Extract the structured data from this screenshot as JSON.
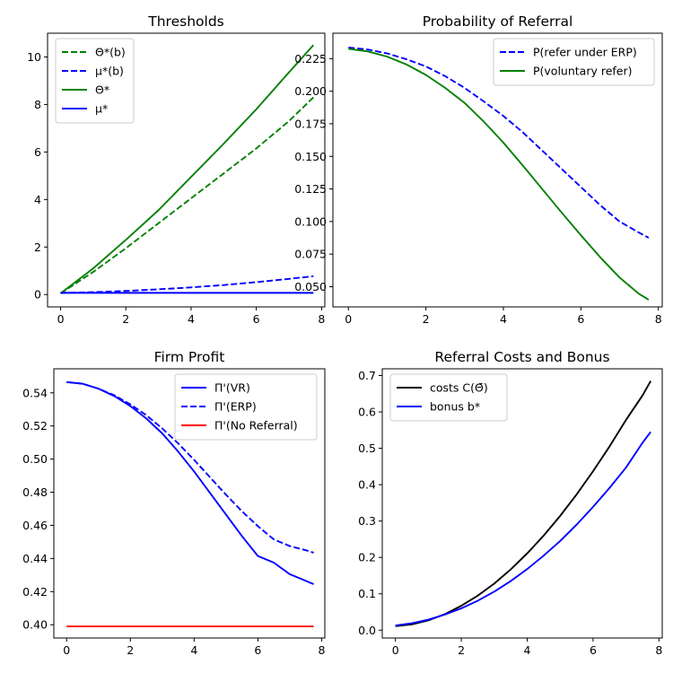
{
  "chart_data": [
    {
      "type": "line",
      "title": "Thresholds",
      "xlim": [
        -0.4,
        8.1
      ],
      "ylim": [
        -0.52,
        11.0
      ],
      "xticks": [
        0,
        2,
        4,
        6,
        8
      ],
      "yticks": [
        0,
        2,
        4,
        6,
        8,
        10
      ],
      "legend": "top-left",
      "series": [
        {
          "name": "Θ*(b)",
          "color": "#008000",
          "dash": "dashed",
          "x": [
            0,
            1,
            2,
            3,
            4,
            5,
            6,
            7,
            7.75
          ],
          "y": [
            0.05,
            0.95,
            1.95,
            3.0,
            4.05,
            5.1,
            6.15,
            7.3,
            8.3
          ]
        },
        {
          "name": "μ*(b)",
          "color": "#0000ff",
          "dash": "dashed",
          "x": [
            0,
            1,
            2,
            3,
            4,
            5,
            6,
            7,
            7.75
          ],
          "y": [
            0.07,
            0.1,
            0.15,
            0.22,
            0.3,
            0.4,
            0.52,
            0.66,
            0.77
          ]
        },
        {
          "name": "Θ*",
          "color": "#008000",
          "dash": "solid",
          "x": [
            0,
            1,
            2,
            3,
            4,
            5,
            6,
            7,
            7.75
          ],
          "y": [
            0.05,
            1.1,
            2.3,
            3.55,
            4.95,
            6.35,
            7.8,
            9.35,
            10.5
          ]
        },
        {
          "name": "μ*",
          "color": "#0000ff",
          "dash": "solid",
          "x": [
            0,
            7.75
          ],
          "y": [
            0.07,
            0.07
          ]
        }
      ]
    },
    {
      "type": "line",
      "title": "Probability of Referral",
      "xlim": [
        -0.4,
        8.1
      ],
      "ylim": [
        0.0345,
        0.2445
      ],
      "xticks": [
        0,
        2,
        4,
        6,
        8
      ],
      "yticks": [
        0.05,
        0.075,
        0.1,
        0.125,
        0.15,
        0.175,
        0.2,
        0.225
      ],
      "ytick_labels": [
        "0.050",
        "0.075",
        "0.100",
        "0.125",
        "0.150",
        "0.175",
        "0.200",
        "0.225"
      ],
      "legend": "top-right",
      "series": [
        {
          "name": "P(refer under ERP)",
          "color": "#0000ff",
          "dash": "dashed",
          "x": [
            0,
            0.5,
            1,
            1.5,
            2,
            2.5,
            3,
            3.5,
            4,
            4.5,
            5,
            5.5,
            6,
            6.5,
            7,
            7.5,
            7.75
          ],
          "y": [
            0.2335,
            0.232,
            0.229,
            0.2245,
            0.219,
            0.2115,
            0.2025,
            0.192,
            0.181,
            0.1685,
            0.1545,
            0.1405,
            0.1265,
            0.1125,
            0.1,
            0.0915,
            0.0875
          ]
        },
        {
          "name": "P(voluntary refer)",
          "color": "#008000",
          "dash": "solid",
          "x": [
            0,
            0.5,
            1,
            1.5,
            2,
            2.5,
            3,
            3.5,
            4,
            4.5,
            5,
            5.5,
            6,
            6.5,
            7,
            7.5,
            7.75
          ],
          "y": [
            0.2325,
            0.2305,
            0.2265,
            0.2205,
            0.2125,
            0.2025,
            0.191,
            0.1765,
            0.1605,
            0.143,
            0.125,
            0.107,
            0.0895,
            0.0725,
            0.057,
            0.0445,
            0.04
          ]
        }
      ]
    },
    {
      "type": "line",
      "title": "Firm Profit",
      "xlim": [
        -0.4,
        8.1
      ],
      "ylim": [
        0.392,
        0.5545
      ],
      "xticks": [
        0,
        2,
        4,
        6,
        8
      ],
      "yticks": [
        0.4,
        0.42,
        0.44,
        0.46,
        0.48,
        0.5,
        0.52,
        0.54
      ],
      "ytick_labels": [
        "0.40",
        "0.42",
        "0.44",
        "0.46",
        "0.48",
        "0.50",
        "0.52",
        "0.54"
      ],
      "legend": "top-right",
      "series": [
        {
          "name": "Π'(VR)",
          "color": "#0000ff",
          "dash": "solid",
          "x": [
            0,
            0.5,
            1,
            1.5,
            2,
            2.5,
            3,
            3.5,
            4,
            4.5,
            5,
            5.5,
            6,
            6.5,
            7,
            7.5,
            7.75
          ],
          "y": [
            0.5465,
            0.5455,
            0.5425,
            0.538,
            0.532,
            0.5245,
            0.5155,
            0.5045,
            0.4925,
            0.4795,
            0.4665,
            0.4535,
            0.4415,
            0.4375,
            0.4305,
            0.4265,
            0.4245
          ]
        },
        {
          "name": "Π'(ERP)",
          "color": "#0000ff",
          "dash": "dashed",
          "x": [
            0,
            0.5,
            1,
            1.5,
            2,
            2.5,
            3,
            3.5,
            4,
            4.5,
            5,
            5.5,
            6,
            6.5,
            7,
            7.5,
            7.75
          ],
          "y": [
            0.5465,
            0.5455,
            0.5425,
            0.5385,
            0.533,
            0.5265,
            0.5185,
            0.5095,
            0.4995,
            0.489,
            0.4785,
            0.4685,
            0.4595,
            0.4515,
            0.4475,
            0.445,
            0.4435
          ]
        },
        {
          "name": "Π'(No Referral)",
          "color": "#ff0000",
          "dash": "solid",
          "x": [
            0,
            7.75
          ],
          "y": [
            0.399,
            0.399
          ]
        }
      ]
    },
    {
      "type": "line",
      "title": "Referral Costs and Bonus",
      "xlim": [
        -0.4,
        8.1
      ],
      "ylim": [
        -0.0215,
        0.7185
      ],
      "xticks": [
        0,
        2,
        4,
        6,
        8
      ],
      "yticks": [
        0.0,
        0.1,
        0.2,
        0.3,
        0.4,
        0.5,
        0.6,
        0.7
      ],
      "ytick_labels": [
        "0.0",
        "0.1",
        "0.2",
        "0.3",
        "0.4",
        "0.5",
        "0.6",
        "0.7"
      ],
      "legend": "top-left",
      "series": [
        {
          "name": "costs C(Θ̄)",
          "color": "#000000",
          "dash": "solid",
          "x": [
            0,
            0.5,
            1,
            1.5,
            2,
            2.5,
            3,
            3.5,
            4,
            4.5,
            5,
            5.5,
            6,
            6.5,
            7,
            7.5,
            7.75
          ],
          "y": [
            0.011,
            0.016,
            0.027,
            0.044,
            0.067,
            0.095,
            0.128,
            0.167,
            0.211,
            0.26,
            0.314,
            0.373,
            0.437,
            0.505,
            0.578,
            0.645,
            0.685
          ]
        },
        {
          "name": "bonus b*",
          "color": "#0000ff",
          "dash": "solid",
          "x": [
            0,
            0.5,
            1,
            1.5,
            2,
            2.5,
            3,
            3.5,
            4,
            4.5,
            5,
            5.5,
            6,
            6.5,
            7,
            7.5,
            7.75
          ],
          "y": [
            0.013,
            0.019,
            0.029,
            0.043,
            0.06,
            0.081,
            0.106,
            0.135,
            0.168,
            0.205,
            0.245,
            0.29,
            0.339,
            0.391,
            0.447,
            0.515,
            0.545
          ]
        }
      ]
    }
  ]
}
